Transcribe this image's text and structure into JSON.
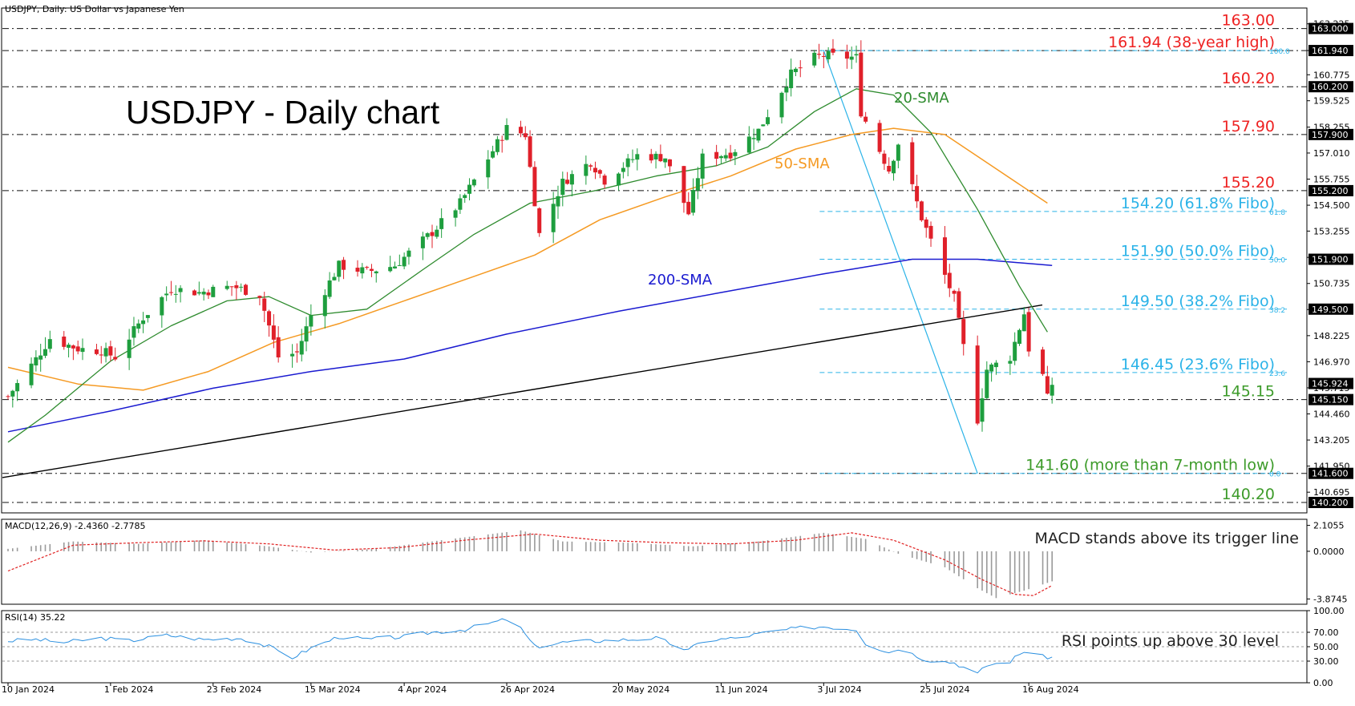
{
  "header": {
    "symbol_line": "USDJPY, Daily:  US Dollar vs Japanese Yen"
  },
  "colors": {
    "bull": "#1e9e3e",
    "bear": "#e0202a",
    "sma20": "#2e8b2e",
    "sma50": "#f59a23",
    "sma200": "#1a1ad0",
    "fibo": "#2bb3e8",
    "level_red": "#ee2222",
    "level_green": "#3d9b2a",
    "trendline": "#000000",
    "macd_signal": "#e02020",
    "rsi": "#2a8fe0"
  },
  "chart_data": [
    {
      "type": "candlestick",
      "title": "USDJPY - Daily chart",
      "ylim": [
        139.7,
        163.6
      ],
      "y_ticks": [
        "163.225",
        "161.940",
        "160.775",
        "159.525",
        "158.255",
        "157.010",
        "155.755",
        "154.500",
        "153.255",
        "151.990",
        "150.735",
        "149.480",
        "148.225",
        "146.970",
        "145.715",
        "144.460",
        "143.205",
        "141.950",
        "140.695"
      ],
      "price_marker_labels": [
        {
          "value": 163.0,
          "label": "163.000",
          "color": "#ffffff"
        },
        {
          "value": 161.94,
          "label": "161.940",
          "color": "#ffffff"
        },
        {
          "value": 160.2,
          "label": "160.200",
          "color": "#ffffff"
        },
        {
          "value": 157.9,
          "label": "157.900",
          "color": "#ffffff"
        },
        {
          "value": 155.2,
          "label": "155.200",
          "color": "#ffffff"
        },
        {
          "value": 151.9,
          "label": "151.900",
          "color": "#ffffff"
        },
        {
          "value": 149.5,
          "label": "149.500",
          "color": "#ffffff"
        },
        {
          "value": 145.924,
          "label": "145.924",
          "color": "#ffffff"
        },
        {
          "value": 145.15,
          "label": "145.150",
          "color": "#ffffff"
        },
        {
          "value": 141.6,
          "label": "141.600",
          "color": "#ffffff"
        },
        {
          "value": 140.2,
          "label": "140.200",
          "color": "#ffffff"
        }
      ],
      "horizontal_levels": [
        {
          "value": 163.0,
          "label": "163.00",
          "color": "red"
        },
        {
          "value": 161.94,
          "label": "161.94 (38-year high)",
          "color": "red"
        },
        {
          "value": 160.2,
          "label": "160.20",
          "color": "red"
        },
        {
          "value": 157.9,
          "label": "157.90",
          "color": "red"
        },
        {
          "value": 155.2,
          "label": "155.20",
          "color": "red"
        },
        {
          "value": 151.9,
          "label": "151.90 (50.0% Fibo)",
          "color": "fibo"
        },
        {
          "value": 149.5,
          "label": "149.50 (38.2% Fibo)",
          "color": "fibo"
        },
        {
          "value": 145.15,
          "label": "145.15",
          "color": "green"
        },
        {
          "value": 141.6,
          "label": "141.60 (more than 7-month low)",
          "color": "green"
        },
        {
          "value": 140.2,
          "label": "140.20",
          "color": "green"
        }
      ],
      "fibo_levels": [
        {
          "value": 161.94,
          "tag": "100.0",
          "label": ""
        },
        {
          "value": 154.2,
          "tag": "61.8",
          "label": "154.20 (61.8% Fibo)"
        },
        {
          "value": 151.9,
          "tag": "50.0",
          "label": ""
        },
        {
          "value": 149.5,
          "tag": "38.2",
          "label": ""
        },
        {
          "value": 146.45,
          "tag": "23.6",
          "label": "146.45 (23.6% Fibo)"
        },
        {
          "value": 141.6,
          "tag": "0.0",
          "label": ""
        }
      ],
      "annotations": [
        "20-SMA",
        "50-SMA",
        "200-SMA"
      ],
      "x_ticks": [
        "10 Jan 2024",
        "1 Feb 2024",
        "23 Feb 2024",
        "15 Mar 2024",
        "4 Apr 2024",
        "26 Apr 2024",
        "20 May 2024",
        "11 Jun 2024",
        "3 Jul 2024",
        "25 Jul 2024",
        "16 Aug 2024"
      ],
      "trendline_points": [
        [
          "2024-01-10",
          141.4
        ],
        [
          "2024-08-20",
          149.7
        ]
      ],
      "fibo_swing": {
        "high": [
          "2024-07-03",
          161.94
        ],
        "low": [
          "2024-08-05",
          141.6
        ]
      },
      "close_path": [
        [
          "2024-01-10",
          145.3
        ],
        [
          "2024-01-16",
          147.1
        ],
        [
          "2024-01-19",
          148.1
        ],
        [
          "2024-01-25",
          147.6
        ],
        [
          "2024-01-30",
          147.5
        ],
        [
          "2024-02-02",
          147.2
        ],
        [
          "2024-02-08",
          149.1
        ],
        [
          "2024-02-14",
          150.5
        ],
        [
          "2024-02-20",
          150.3
        ],
        [
          "2024-02-27",
          150.6
        ],
        [
          "2024-03-04",
          150.2
        ],
        [
          "2024-03-08",
          147.2
        ],
        [
          "2024-03-12",
          147.4
        ],
        [
          "2024-03-15",
          149.2
        ],
        [
          "2024-03-21",
          151.6
        ],
        [
          "2024-03-27",
          151.3
        ],
        [
          "2024-04-02",
          151.6
        ],
        [
          "2024-04-10",
          153.2
        ],
        [
          "2024-04-16",
          154.6
        ],
        [
          "2024-04-26",
          158.2
        ],
        [
          "2024-04-30",
          157.9
        ],
        [
          "2024-05-03",
          153.1
        ],
        [
          "2024-05-08",
          155.6
        ],
        [
          "2024-05-14",
          156.6
        ],
        [
          "2024-05-17",
          155.7
        ],
        [
          "2024-05-24",
          156.9
        ],
        [
          "2024-05-30",
          156.8
        ],
        [
          "2024-06-04",
          154.1
        ],
        [
          "2024-06-07",
          156.8
        ],
        [
          "2024-06-13",
          157.0
        ],
        [
          "2024-06-19",
          158.1
        ],
        [
          "2024-06-26",
          160.8
        ],
        [
          "2024-07-01",
          161.6
        ],
        [
          "2024-07-03",
          161.7
        ],
        [
          "2024-07-10",
          161.6
        ],
        [
          "2024-07-11",
          159.0
        ],
        [
          "2024-07-17",
          156.2
        ],
        [
          "2024-07-19",
          157.5
        ],
        [
          "2024-07-24",
          153.9
        ],
        [
          "2024-07-31",
          150.0
        ],
        [
          "2024-08-05",
          144.2
        ],
        [
          "2024-08-07",
          146.6
        ],
        [
          "2024-08-12",
          147.2
        ],
        [
          "2024-08-15",
          149.3
        ],
        [
          "2024-08-16",
          147.6
        ],
        [
          "2024-08-19",
          146.3
        ],
        [
          "2024-08-20",
          145.2
        ],
        [
          "2024-08-21",
          145.9
        ]
      ],
      "sma20": [
        [
          "2024-01-10",
          143.1
        ],
        [
          "2024-01-18",
          144.4
        ],
        [
          "2024-02-01",
          147.0
        ],
        [
          "2024-02-14",
          148.7
        ],
        [
          "2024-02-26",
          149.9
        ],
        [
          "2024-03-06",
          150.1
        ],
        [
          "2024-03-15",
          149.2
        ],
        [
          "2024-03-27",
          149.5
        ],
        [
          "2024-04-08",
          151.4
        ],
        [
          "2024-04-19",
          153.1
        ],
        [
          "2024-05-01",
          154.6
        ],
        [
          "2024-05-15",
          155.2
        ],
        [
          "2024-05-28",
          155.9
        ],
        [
          "2024-06-10",
          156.4
        ],
        [
          "2024-06-21",
          157.3
        ],
        [
          "2024-07-01",
          159.0
        ],
        [
          "2024-07-10",
          160.1
        ],
        [
          "2024-07-18",
          159.8
        ],
        [
          "2024-07-26",
          158.0
        ],
        [
          "2024-08-05",
          154.3
        ],
        [
          "2024-08-14",
          150.6
        ],
        [
          "2024-08-20",
          148.4
        ]
      ],
      "sma50": [
        [
          "2024-01-10",
          146.7
        ],
        [
          "2024-01-25",
          145.9
        ],
        [
          "2024-02-08",
          145.6
        ],
        [
          "2024-02-22",
          146.5
        ],
        [
          "2024-03-07",
          147.9
        ],
        [
          "2024-03-21",
          148.8
        ],
        [
          "2024-04-04",
          149.9
        ],
        [
          "2024-04-18",
          151.0
        ],
        [
          "2024-05-02",
          152.1
        ],
        [
          "2024-05-16",
          153.8
        ],
        [
          "2024-05-30",
          154.9
        ],
        [
          "2024-06-13",
          155.9
        ],
        [
          "2024-06-27",
          157.2
        ],
        [
          "2024-07-09",
          157.9
        ],
        [
          "2024-07-18",
          158.2
        ],
        [
          "2024-07-29",
          157.9
        ],
        [
          "2024-08-08",
          156.4
        ],
        [
          "2024-08-20",
          154.6
        ]
      ],
      "sma200": [
        [
          "2024-01-10",
          143.6
        ],
        [
          "2024-02-01",
          144.6
        ],
        [
          "2024-02-23",
          145.7
        ],
        [
          "2024-03-15",
          146.5
        ],
        [
          "2024-04-04",
          147.1
        ],
        [
          "2024-04-26",
          148.3
        ],
        [
          "2024-05-20",
          149.4
        ],
        [
          "2024-06-11",
          150.3
        ],
        [
          "2024-07-03",
          151.2
        ],
        [
          "2024-07-22",
          151.9
        ],
        [
          "2024-08-05",
          151.9
        ],
        [
          "2024-08-21",
          151.6
        ]
      ]
    },
    {
      "type": "bar",
      "title": "MACD(12,26,9) -2.4360 -2.7785",
      "ylim": [
        -4.3,
        2.6
      ],
      "y_ticks": [
        "2.1055",
        "0.0000",
        "-3.8745"
      ],
      "annotation": "MACD stands above its trigger line",
      "histogram_path": [
        [
          "2024-01-10",
          0.2
        ],
        [
          "2024-01-24",
          0.8
        ],
        [
          "2024-02-07",
          0.6
        ],
        [
          "2024-02-21",
          0.9
        ],
        [
          "2024-03-06",
          0.4
        ],
        [
          "2024-03-15",
          -0.1
        ],
        [
          "2024-03-29",
          0.2
        ],
        [
          "2024-04-12",
          0.9
        ],
        [
          "2024-04-29",
          1.7
        ],
        [
          "2024-05-08",
          0.8
        ],
        [
          "2024-05-22",
          0.7
        ],
        [
          "2024-06-05",
          0.4
        ],
        [
          "2024-06-19",
          0.8
        ],
        [
          "2024-07-03",
          1.5
        ],
        [
          "2024-07-12",
          1.0
        ],
        [
          "2024-07-19",
          -0.2
        ],
        [
          "2024-07-29",
          -1.3
        ],
        [
          "2024-08-05",
          -3.0
        ],
        [
          "2024-08-09",
          -3.8
        ],
        [
          "2024-08-15",
          -3.2
        ],
        [
          "2024-08-21",
          -2.44
        ]
      ],
      "signal_path": [
        [
          "2024-01-10",
          -1.6
        ],
        [
          "2024-01-24",
          0.5
        ],
        [
          "2024-02-07",
          0.7
        ],
        [
          "2024-02-21",
          0.85
        ],
        [
          "2024-03-06",
          0.6
        ],
        [
          "2024-03-20",
          0.1
        ],
        [
          "2024-04-03",
          0.3
        ],
        [
          "2024-04-17",
          0.9
        ],
        [
          "2024-05-02",
          1.4
        ],
        [
          "2024-05-16",
          0.9
        ],
        [
          "2024-05-30",
          0.7
        ],
        [
          "2024-06-13",
          0.6
        ],
        [
          "2024-06-27",
          0.9
        ],
        [
          "2024-07-09",
          1.5
        ],
        [
          "2024-07-18",
          0.9
        ],
        [
          "2024-07-29",
          -0.7
        ],
        [
          "2024-08-06",
          -2.3
        ],
        [
          "2024-08-13",
          -3.5
        ],
        [
          "2024-08-17",
          -3.6
        ],
        [
          "2024-08-21",
          -2.78
        ]
      ]
    },
    {
      "type": "line",
      "title": "RSI(14) 35.22",
      "ylim": [
        0,
        100
      ],
      "y_ticks": [
        "100.00",
        "70.00",
        "50.00",
        "30.00",
        "0.00"
      ],
      "annotation": "RSI points up above 30 level",
      "values_path": [
        [
          "2024-01-10",
          58
        ],
        [
          "2024-01-16",
          60
        ],
        [
          "2024-01-22",
          56
        ],
        [
          "2024-01-30",
          62
        ],
        [
          "2024-02-05",
          58
        ],
        [
          "2024-02-13",
          66
        ],
        [
          "2024-02-21",
          60
        ],
        [
          "2024-02-29",
          62
        ],
        [
          "2024-03-06",
          50
        ],
        [
          "2024-03-11",
          35
        ],
        [
          "2024-03-15",
          48
        ],
        [
          "2024-03-21",
          64
        ],
        [
          "2024-03-27",
          60
        ],
        [
          "2024-04-04",
          64
        ],
        [
          "2024-04-10",
          70
        ],
        [
          "2024-04-17",
          74
        ],
        [
          "2024-04-26",
          88
        ],
        [
          "2024-04-29",
          75
        ],
        [
          "2024-05-02",
          50
        ],
        [
          "2024-05-08",
          56
        ],
        [
          "2024-05-15",
          58
        ],
        [
          "2024-05-22",
          60
        ],
        [
          "2024-05-28",
          62
        ],
        [
          "2024-06-04",
          45
        ],
        [
          "2024-06-07",
          58
        ],
        [
          "2024-06-14",
          62
        ],
        [
          "2024-06-21",
          70
        ],
        [
          "2024-06-28",
          76
        ],
        [
          "2024-07-03",
          78
        ],
        [
          "2024-07-10",
          74
        ],
        [
          "2024-07-12",
          55
        ],
        [
          "2024-07-17",
          42
        ],
        [
          "2024-07-19",
          48
        ],
        [
          "2024-07-25",
          32
        ],
        [
          "2024-07-31",
          28
        ],
        [
          "2024-08-05",
          12
        ],
        [
          "2024-08-07",
          24
        ],
        [
          "2024-08-12",
          30
        ],
        [
          "2024-08-15",
          44
        ],
        [
          "2024-08-19",
          36
        ],
        [
          "2024-08-21",
          35.22
        ]
      ]
    }
  ]
}
